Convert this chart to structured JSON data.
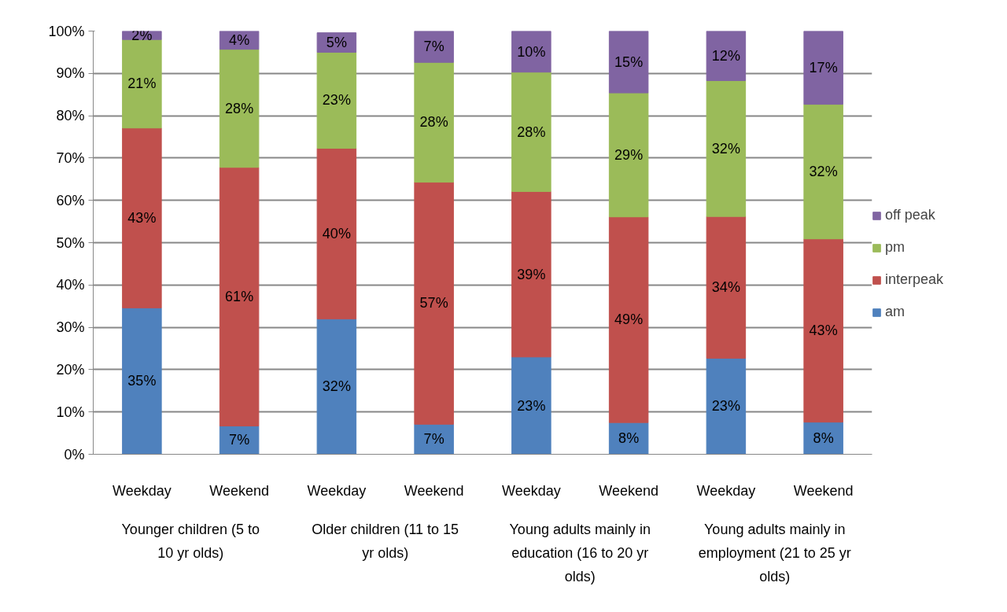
{
  "chart_data": {
    "type": "bar",
    "stacked": true,
    "categories": [
      "Weekday",
      "Weekend",
      "Weekday",
      "Weekend",
      "Weekday",
      "Weekend",
      "Weekday",
      "Weekend"
    ],
    "series": [
      {
        "name": "am",
        "color": "#4f81bd",
        "values": [
          34.6,
          6.7,
          32.0,
          7.1,
          23.0,
          7.5,
          22.7,
          7.6
        ],
        "value_labels": [
          "35%",
          "7%",
          "32%",
          "7%",
          "23%",
          "8%",
          "23%",
          "8%"
        ]
      },
      {
        "name": "interpeak",
        "color": "#c0504d",
        "values": [
          42.5,
          61.1,
          40.3,
          57.2,
          39.1,
          48.6,
          33.5,
          43.3
        ],
        "value_labels": [
          "43%",
          "61%",
          "40%",
          "57%",
          "39%",
          "49%",
          "34%",
          "43%"
        ]
      },
      {
        "name": "pm",
        "color": "#9bbb59",
        "values": [
          20.9,
          27.9,
          22.7,
          28.3,
          28.2,
          29.3,
          32.1,
          31.8
        ],
        "value_labels": [
          "21%",
          "28%",
          "23%",
          "28%",
          "28%",
          "29%",
          "32%",
          "32%"
        ]
      },
      {
        "name": "off peak",
        "color": "#8064a2",
        "values": [
          2.0,
          4.3,
          4.6,
          7.4,
          9.7,
          14.6,
          11.7,
          17.3
        ],
        "value_labels": [
          "2%",
          "4%",
          "5%",
          "7%",
          "10%",
          "15%",
          "12%",
          "17%"
        ]
      }
    ],
    "annotations": [
      "Younger children (5 to 10 yr olds)",
      "Older children (11 to 15 yr olds)",
      "Young adults mainly in education (16 to 20 yr olds)",
      "Young adults mainly in employment (21 to 25 yr olds)"
    ],
    "ylim": [
      0,
      100
    ],
    "yticks": [
      {
        "value": 0,
        "label": "0%"
      },
      {
        "value": 10,
        "label": "10%"
      },
      {
        "value": 20,
        "label": "20%"
      },
      {
        "value": 30,
        "label": "30%"
      },
      {
        "value": 40,
        "label": "40%"
      },
      {
        "value": 50,
        "label": "50%"
      },
      {
        "value": 60,
        "label": "60%"
      },
      {
        "value": 70,
        "label": "70%"
      },
      {
        "value": 80,
        "label": "80%"
      },
      {
        "value": 90,
        "label": "90%"
      },
      {
        "value": 100,
        "label": "100%"
      }
    ],
    "grid": "y",
    "legend": "right"
  }
}
